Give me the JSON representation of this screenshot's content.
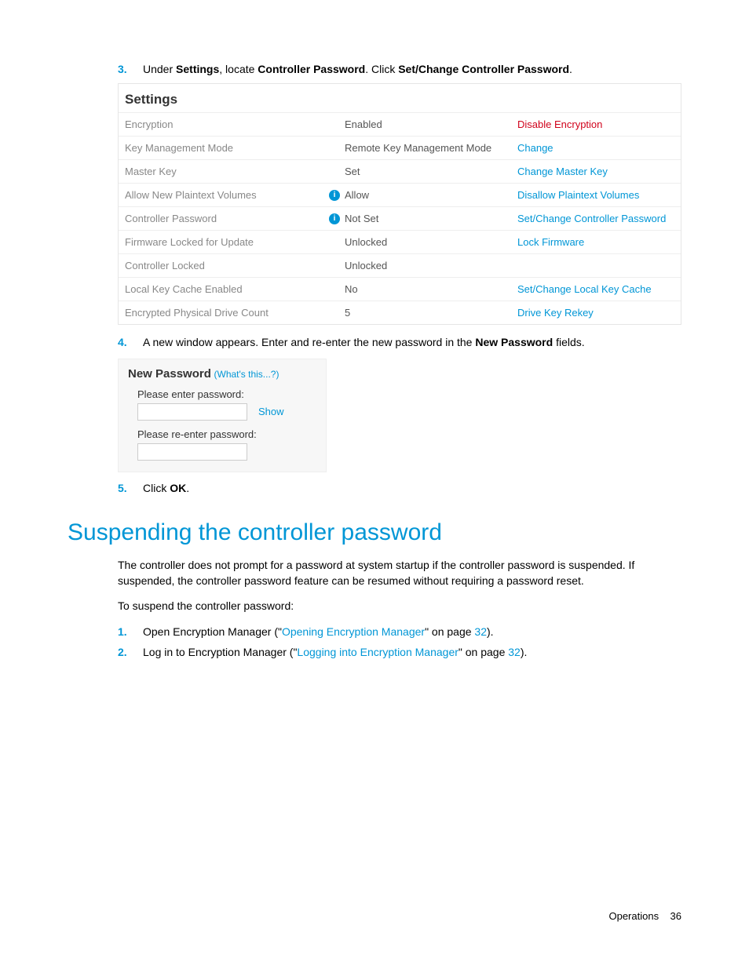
{
  "step3": {
    "num": "3.",
    "pre": "Under ",
    "b1": "Settings",
    "mid1": ", locate ",
    "b2": "Controller Password",
    "mid2": ". Click ",
    "b3": "Set/Change Controller Password",
    "post": "."
  },
  "settings": {
    "title": "Settings",
    "rows": [
      {
        "label": "Encryption",
        "value": "Enabled",
        "action": "Disable Encryption",
        "action_color": "red",
        "info": false
      },
      {
        "label": "Key Management Mode",
        "value": "Remote Key Management Mode",
        "action": "Change",
        "action_color": "blue",
        "info": false
      },
      {
        "label": "Master Key",
        "value": "Set",
        "action": "Change Master Key",
        "action_color": "blue",
        "info": false
      },
      {
        "label": "Allow New Plaintext Volumes",
        "value": "Allow",
        "action": "Disallow Plaintext Volumes",
        "action_color": "blue",
        "info": true
      },
      {
        "label": "Controller Password",
        "value": "Not Set",
        "action": "Set/Change Controller Password",
        "action_color": "blue",
        "info": true
      },
      {
        "label": "Firmware Locked for Update",
        "value": "Unlocked",
        "action": "Lock Firmware",
        "action_color": "blue",
        "info": false
      },
      {
        "label": "Controller Locked",
        "value": "Unlocked",
        "action": "",
        "action_color": "blue",
        "info": false
      },
      {
        "label": "Local Key Cache Enabled",
        "value": "No",
        "action": "Set/Change Local Key Cache",
        "action_color": "blue",
        "info": false
      },
      {
        "label": "Encrypted Physical Drive Count",
        "value": "5",
        "action": "Drive Key Rekey",
        "action_color": "blue",
        "info": false
      }
    ]
  },
  "step4": {
    "num": "4.",
    "pre": "A new window appears. Enter and re-enter the new password in the ",
    "b1": "New Password",
    "post": " fields."
  },
  "newpass": {
    "title": "New Password",
    "whats": "(What's this...?)",
    "label1": "Please enter password:",
    "show": "Show",
    "label2": "Please re-enter password:"
  },
  "step5": {
    "num": "5.",
    "pre": "Click ",
    "b1": "OK",
    "post": "."
  },
  "heading": "Suspending the controller password",
  "p1": "The controller does not prompt for a password at system startup if the controller password is suspended. If suspended, the controller password feature can be resumed without requiring a password reset.",
  "p2": "To suspend the controller password:",
  "sub1": {
    "num": "1.",
    "pre": "Open Encryption Manager (\"",
    "link": "Opening Encryption Manager",
    "mid": "\" on page ",
    "page": "32",
    "post": ")."
  },
  "sub2": {
    "num": "2.",
    "pre": "Log in to Encryption Manager (\"",
    "link": "Logging into Encryption Manager",
    "mid": "\" on page ",
    "page": "32",
    "post": ")."
  },
  "footer": {
    "section": "Operations",
    "page": "36"
  },
  "colors": {
    "accent": "#0096d6",
    "danger": "#d0021b",
    "muted": "#888888"
  }
}
